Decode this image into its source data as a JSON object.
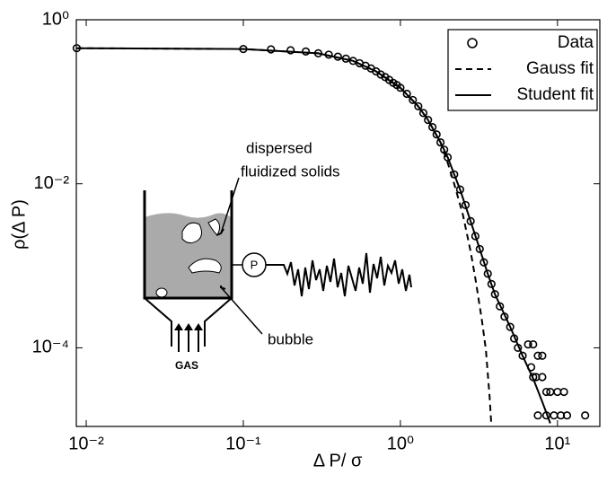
{
  "chart_data": {
    "type": "scatter",
    "xlabel": "Δ P/ σ",
    "ylabel": "ρ(Δ P)",
    "xscale": "log",
    "yscale": "log",
    "xlim": [
      0.00865,
      18.6
    ],
    "ylim": [
      1.1e-05,
      1
    ],
    "xticks": [
      {
        "value": 0.01,
        "label": "10⁻²"
      },
      {
        "value": 0.1,
        "label": "10⁻¹"
      },
      {
        "value": 1,
        "label": "10⁰"
      },
      {
        "value": 10,
        "label": "10¹"
      }
    ],
    "yticks": [
      {
        "value": 1,
        "label": "10⁰"
      },
      {
        "value": 0.01,
        "label": "10⁻²"
      },
      {
        "value": 0.0001,
        "label": "10⁻⁴"
      }
    ],
    "legend": "upper right",
    "series": [
      {
        "name": "Data",
        "style": "marker",
        "color": "#000000",
        "x": [
          0.0087,
          0.1,
          0.15,
          0.2,
          0.25,
          0.3,
          0.35,
          0.4,
          0.45,
          0.5,
          0.55,
          0.6,
          0.65,
          0.7,
          0.75,
          0.8,
          0.85,
          0.9,
          0.95,
          1.0,
          1.1,
          1.2,
          1.3,
          1.4,
          1.5,
          1.6,
          1.7,
          1.8,
          1.9,
          2.0,
          2.2,
          2.4,
          2.6,
          2.8,
          3.0,
          3.2,
          3.4,
          3.6,
          3.8,
          4.0,
          4.3,
          4.6,
          5.0,
          5.3,
          5.6,
          6.0,
          6.5,
          7,
          7.5,
          6.8,
          7.3,
          8,
          8.5,
          9,
          10,
          11,
          7.5,
          8.5,
          9.5,
          10.5,
          11.5,
          15,
          8,
          7
        ],
        "values": [
          0.45,
          0.44,
          0.435,
          0.425,
          0.41,
          0.39,
          0.375,
          0.355,
          0.335,
          0.315,
          0.295,
          0.275,
          0.255,
          0.235,
          0.215,
          0.2,
          0.185,
          0.17,
          0.16,
          0.148,
          0.125,
          0.105,
          0.088,
          0.073,
          0.06,
          0.049,
          0.04,
          0.032,
          0.026,
          0.021,
          0.013,
          0.0085,
          0.0055,
          0.0035,
          0.0023,
          0.0016,
          0.0011,
          0.0008,
          0.0006,
          0.00045,
          0.00032,
          0.00024,
          0.00018,
          0.00013,
          0.0001,
          8e-05,
          0.00011,
          0.00011,
          8e-05,
          5.8e-05,
          4.4e-05,
          4.4e-05,
          2.9e-05,
          2.9e-05,
          2.9e-05,
          2.9e-05,
          1.5e-05,
          1.5e-05,
          1.5e-05,
          1.5e-05,
          1.5e-05,
          1.5e-05,
          8e-05,
          4.4e-05
        ]
      },
      {
        "name": "Gauss fit",
        "style": "dashed",
        "color": "#000000",
        "x": [
          0.0087,
          0.1,
          0.3,
          0.5,
          0.7,
          1.0,
          1.3,
          1.5,
          1.8,
          2.0,
          2.2,
          2.5,
          2.8,
          3.0,
          3.3,
          3.5,
          3.7,
          3.8
        ],
        "values": [
          0.45,
          0.44,
          0.39,
          0.315,
          0.235,
          0.148,
          0.088,
          0.06,
          0.032,
          0.018,
          0.01,
          0.0042,
          0.0015,
          0.0007,
          0.00022,
          9.5e-05,
          2.5e-05,
          1.1e-05
        ]
      },
      {
        "name": "Student fit",
        "style": "solid",
        "color": "#000000",
        "x": [
          0.0087,
          0.1,
          0.3,
          0.5,
          0.7,
          1.0,
          1.3,
          1.5,
          1.8,
          2.0,
          2.4,
          2.8,
          3.2,
          3.6,
          4.0,
          5.0,
          6.0,
          7.0,
          8.0,
          9.0
        ],
        "values": [
          0.45,
          0.44,
          0.39,
          0.315,
          0.235,
          0.148,
          0.088,
          0.06,
          0.032,
          0.021,
          0.0085,
          0.0035,
          0.0016,
          0.0008,
          0.00045,
          0.00018,
          8e-05,
          4.2e-05,
          2.2e-05,
          1.2e-05
        ]
      }
    ],
    "annotations": [
      "dispersed",
      "fluidized solids",
      "bubble",
      "GAS",
      "P"
    ]
  }
}
